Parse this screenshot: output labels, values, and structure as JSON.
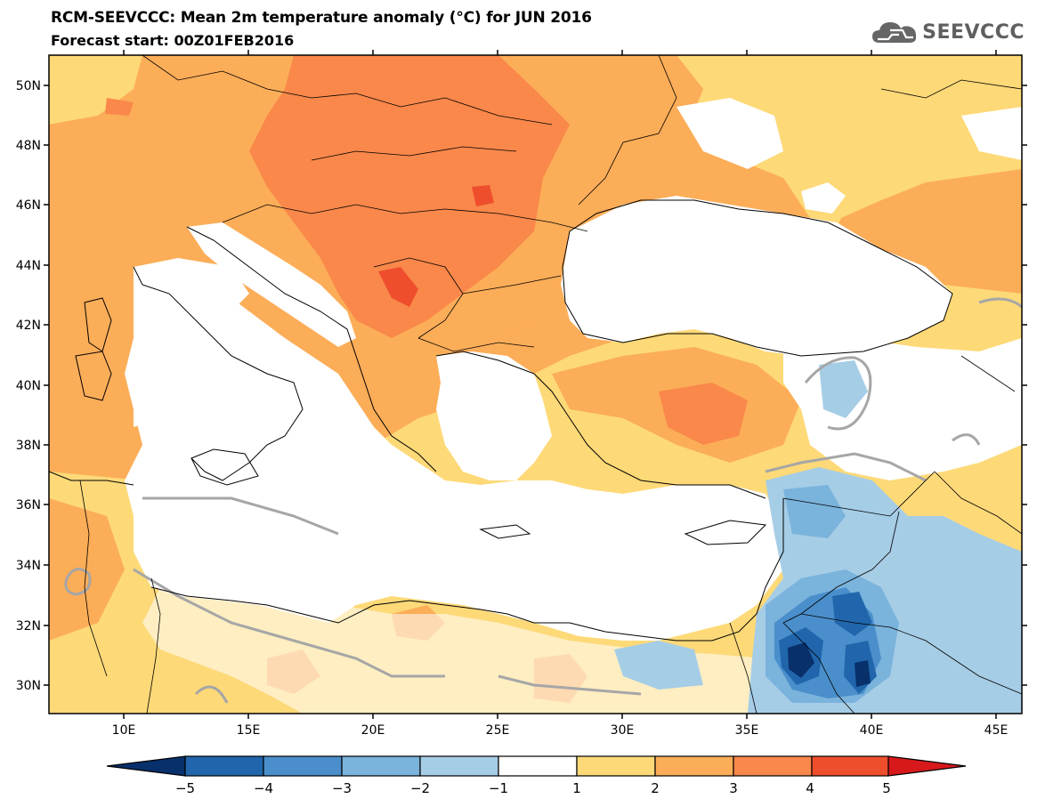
{
  "header": {
    "title": "RCM-SEEVCCC: Mean 2m temperature anomaly (°C) for JUN 2016",
    "subtitle": "Forecast start: 00Z01FEB2016",
    "logo_text": "SEEVCCC",
    "logo_icon": "cloud-icon"
  },
  "map": {
    "lon_range": [
      7,
      46
    ],
    "lat_range": [
      29,
      51
    ],
    "lat_ticks": [
      "30N",
      "32N",
      "34N",
      "36N",
      "38N",
      "40N",
      "42N",
      "44N",
      "46N",
      "48N",
      "50N"
    ],
    "lon_ticks": [
      "10E",
      "15E",
      "20E",
      "25E",
      "30E",
      "35E",
      "40E",
      "45E"
    ]
  },
  "colorbar": {
    "labels": [
      "−5",
      "−4",
      "−3",
      "−2",
      "−1",
      "1",
      "2",
      "3",
      "4",
      "5"
    ],
    "colors": [
      "#08306b",
      "#2166ac",
      "#4a8fcb",
      "#7ab3dc",
      "#a6cde6",
      "#ffffff",
      "#fdd978",
      "#fcad58",
      "#f9884a",
      "#ef4e2d",
      "#d7191c"
    ]
  }
}
